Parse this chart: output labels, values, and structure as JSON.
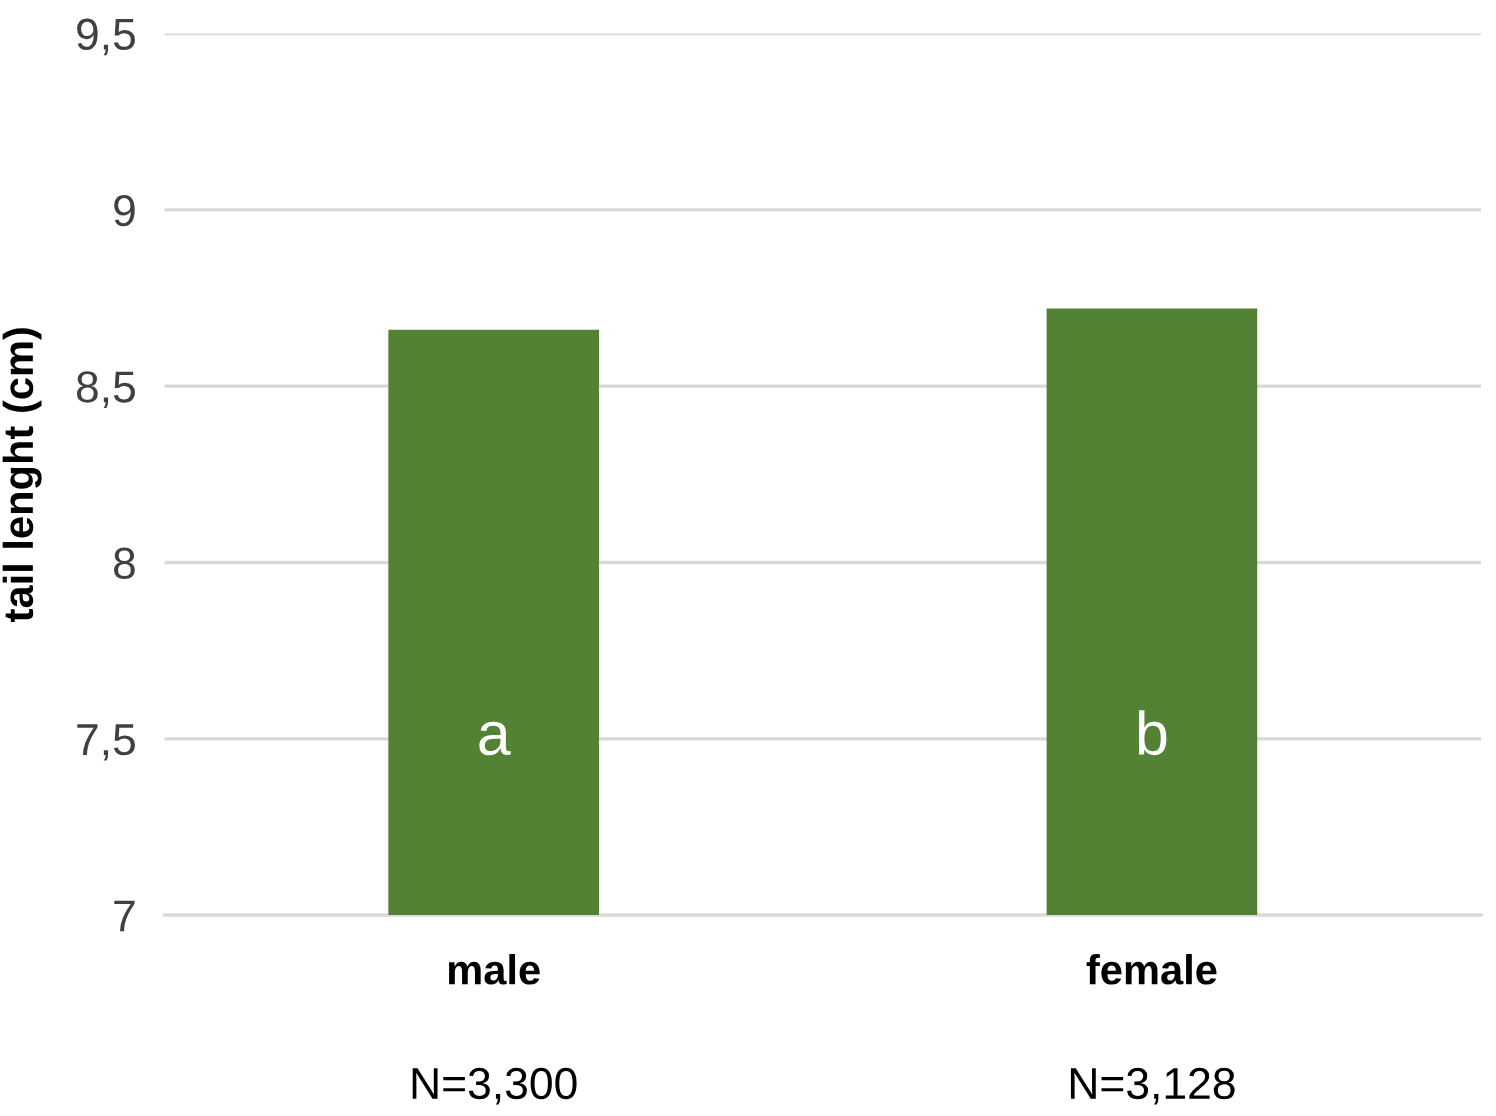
{
  "chart_data": {
    "type": "bar",
    "ylabel": "tail lenght (cm)",
    "categories": [
      "male",
      "female"
    ],
    "values": [
      8.66,
      8.72
    ],
    "color": "#548235",
    "ylim": [
      7,
      9.5
    ],
    "yticks": [
      7,
      {
        "value": 7.5,
        "label": "7,5"
      },
      8,
      {
        "value": 8.5,
        "label": "8,5"
      },
      9,
      {
        "value": 9.5,
        "label": "9,5"
      }
    ],
    "grid": "y",
    "annotations": [
      "a",
      "b",
      "N=3,300",
      "N=3,128"
    ]
  }
}
